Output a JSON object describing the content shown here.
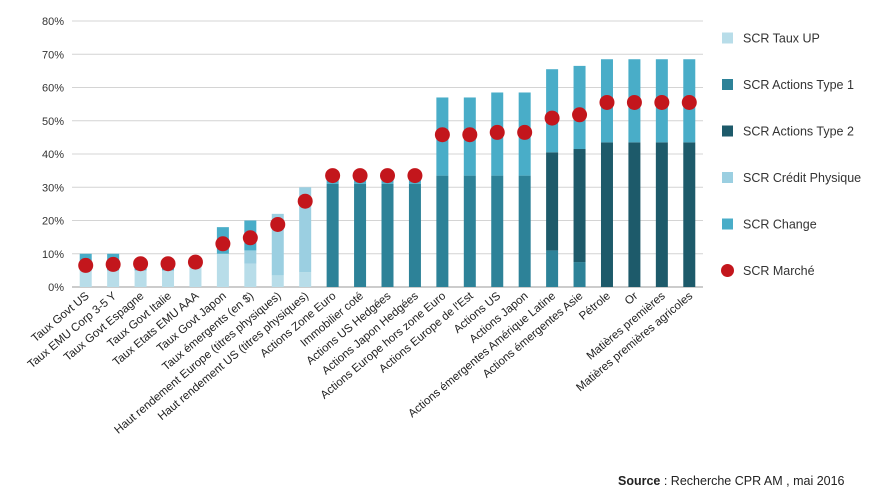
{
  "chart_data": {
    "type": "bar",
    "stacked": true,
    "categories": [
      "Taux Govt US",
      "Taux EMU Corp 3-5 Y",
      "Taux Govt Espagne",
      "Taux Govt Italie",
      "Taux Etats EMU AAA",
      "Taux Govt Japon",
      "Taux émergents (en $)",
      "Haut rendement Europe (titres physiques)",
      "Haut rendement US (titres physiques)",
      "Actions Zone Euro",
      "Immobilier coté",
      "Actions US Hedgées",
      "Actions Japon Hedgées",
      "Actions Europe hors zone Euro",
      "Actions Europe de l'Est",
      "Actions US",
      "Actions Japon",
      "Actions émergentes Amérique Latine",
      "Actions émergentes Asie",
      "Pétrole",
      "Or",
      "Matières premières",
      "Matières premières agricoles"
    ],
    "series": [
      {
        "name": "SCR Taux UP",
        "color": "#b8dde9",
        "values": [
          5,
          5,
          5,
          5,
          6,
          10,
          7,
          3.5,
          4.5,
          0,
          0,
          0,
          0,
          0,
          0,
          0,
          0,
          0,
          0,
          0,
          0,
          0,
          0
        ]
      },
      {
        "name": "SCR Actions Type 1",
        "color": "#2d8298",
        "values": [
          0,
          0,
          0,
          0,
          0,
          0,
          0,
          0,
          0,
          31,
          31,
          31,
          31,
          33.5,
          33.5,
          33.5,
          33.5,
          11,
          7.5,
          0,
          0,
          0,
          0
        ]
      },
      {
        "name": "SCR Actions Type 2",
        "color": "#1d5a6a",
        "values": [
          0,
          0,
          0,
          0,
          0,
          0,
          0,
          0,
          0,
          0,
          0,
          0,
          0,
          0,
          0,
          0,
          0,
          29.5,
          34,
          43.5,
          43.5,
          43.5,
          43.5
        ]
      },
      {
        "name": "SCR Crédit Physique",
        "color": "#9bcfe1",
        "values": [
          0,
          0,
          0,
          0,
          0,
          0,
          4,
          18.5,
          25.5,
          0,
          0,
          0,
          0,
          0,
          0,
          0,
          0,
          0,
          0,
          0,
          0,
          0,
          0
        ]
      },
      {
        "name": "SCR Change",
        "color": "#49adc8",
        "values": [
          5,
          5,
          3,
          3,
          2,
          8,
          9,
          0,
          0,
          2.5,
          2.5,
          2.5,
          2.5,
          23.5,
          23.5,
          25,
          25,
          25,
          25,
          25,
          25,
          25,
          25
        ]
      }
    ],
    "markers": {
      "name": "SCR Marché",
      "color": "#c3161c",
      "values": [
        6.5,
        6.8,
        7.0,
        7.0,
        7.5,
        13.0,
        14.8,
        18.8,
        25.8,
        33.5,
        33.5,
        33.5,
        33.5,
        45.8,
        45.8,
        46.5,
        46.5,
        50.8,
        51.8,
        55.5,
        55.5,
        55.5,
        55.5
      ]
    },
    "ylim": [
      0,
      80
    ],
    "yticks": [
      "0%",
      "10%",
      "20%",
      "30%",
      "40%",
      "50%",
      "60%",
      "70%",
      "80%"
    ],
    "grid": true,
    "legend": "right",
    "title": "",
    "xlabel": "",
    "ylabel": ""
  },
  "source": {
    "label": "Source",
    "text": " : Recherche CPR AM , mai 2016"
  }
}
